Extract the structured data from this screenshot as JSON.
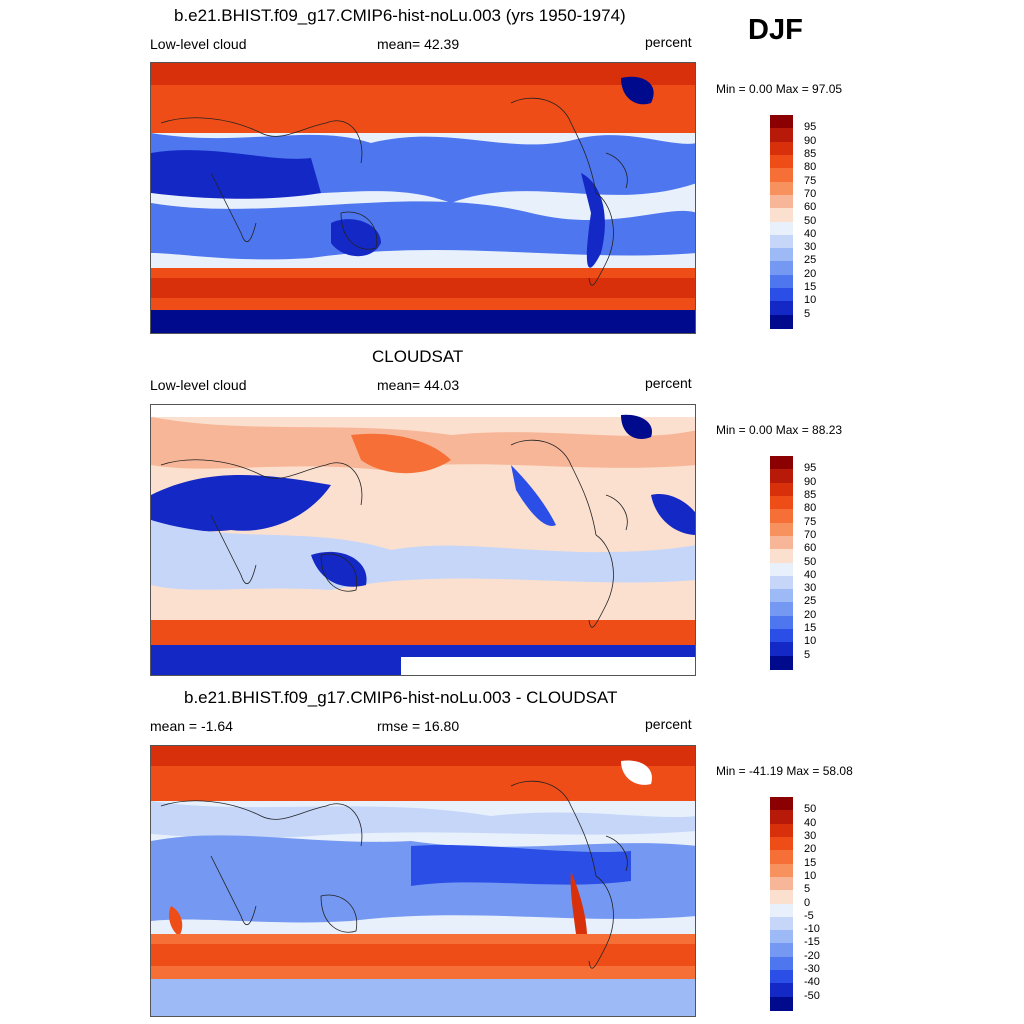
{
  "season": "DJF",
  "chart_data": [
    {
      "type": "heatmap",
      "title": "b.e21.BHIST.f09_g17.CMIP6-hist-noLu.003 (yrs 1950-1974)",
      "left_label": "Low-level cloud",
      "center_label": "mean=  42.39",
      "right_label": "percent",
      "min_max": "Min =   0.00 Max =  97.05",
      "mean": 42.39,
      "min": 0.0,
      "max": 97.05,
      "units": "percent",
      "levels": [
        "95",
        "90",
        "85",
        "80",
        "75",
        "70",
        "60",
        "50",
        "40",
        "30",
        "25",
        "20",
        "15",
        "10",
        "5"
      ]
    },
    {
      "type": "heatmap",
      "title": "CLOUDSAT",
      "left_label": "Low-level cloud",
      "center_label": "mean=  44.03",
      "right_label": "percent",
      "min_max": "Min =   0.00 Max =  88.23",
      "mean": 44.03,
      "min": 0.0,
      "max": 88.23,
      "units": "percent",
      "levels": [
        "95",
        "90",
        "85",
        "80",
        "75",
        "70",
        "60",
        "50",
        "40",
        "30",
        "25",
        "20",
        "15",
        "10",
        "5"
      ]
    },
    {
      "type": "heatmap",
      "title": "b.e21.BHIST.f09_g17.CMIP6-hist-noLu.003 - CLOUDSAT",
      "left_label": "mean =  -1.64",
      "center_label": "rmse =  16.80",
      "right_label": "percent",
      "min_max": "Min = -41.19 Max =  58.08",
      "mean": -1.64,
      "rmse": 16.8,
      "min": -41.19,
      "max": 58.08,
      "units": "percent",
      "levels": [
        "50",
        "40",
        "30",
        "20",
        "15",
        "10",
        "5",
        "0",
        "-5",
        "-10",
        "-15",
        "-20",
        "-30",
        "-40",
        "-50"
      ]
    }
  ],
  "palette": [
    "#8b0000",
    "#b81a0a",
    "#d8300a",
    "#ee4d17",
    "#f56f36",
    "#f7925e",
    "#f8b698",
    "#fbe0cf",
    "#e8f0fc",
    "#c5d6f9",
    "#9dbaf6",
    "#7599f2",
    "#4e76ee",
    "#2a4ee6",
    "#1428c6",
    "#000a8c"
  ]
}
